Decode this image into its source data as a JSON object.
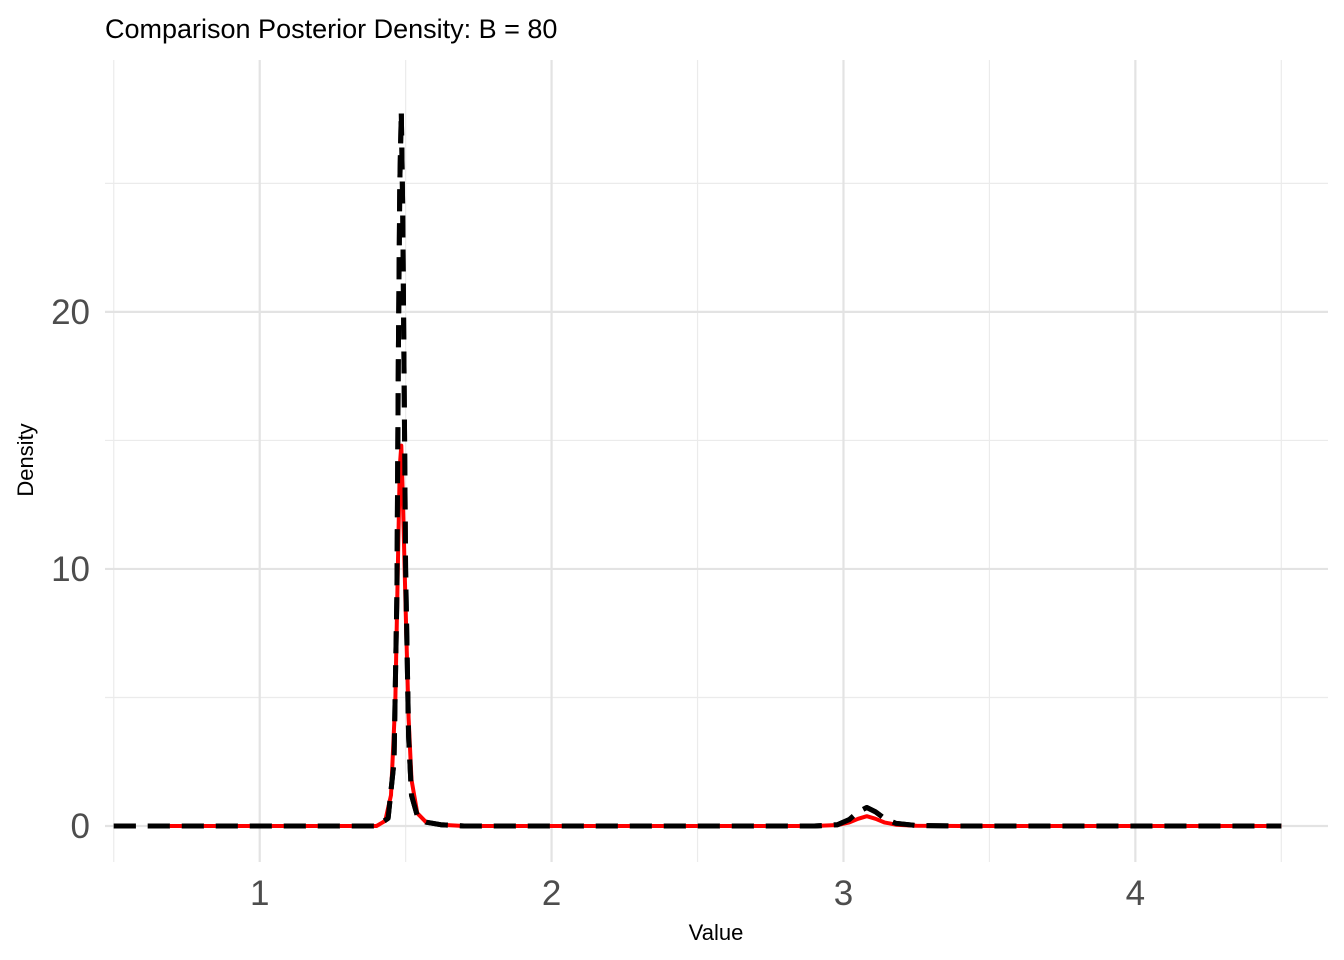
{
  "chart_data": {
    "type": "line",
    "title": "Comparison Posterior Density: B = 80",
    "xlabel": "Value",
    "ylabel": "Density",
    "xlim": [
      0.47,
      4.66
    ],
    "ylim": [
      -1.4,
      29.8
    ],
    "x_ticks": [
      1,
      2,
      3,
      4
    ],
    "x_tick_labels": [
      "1",
      "2",
      "3",
      "4"
    ],
    "y_ticks": [
      0,
      10,
      20
    ],
    "y_tick_labels": [
      "0",
      "10",
      "20"
    ],
    "x_minor_ticks": [
      0.5,
      1.5,
      2.5,
      3.5,
      4.5
    ],
    "y_minor_ticks": [
      5,
      15,
      25
    ],
    "grid": true,
    "legend": "none",
    "series": [
      {
        "color": "#000000",
        "style": "dashed",
        "x": [
          0.5,
          1.2,
          1.4,
          1.44,
          1.46,
          1.47,
          1.475,
          1.48,
          1.485,
          1.49,
          1.495,
          1.5,
          1.51,
          1.52,
          1.54,
          1.57,
          1.62,
          1.7,
          2.0,
          2.9,
          2.98,
          3.02,
          3.05,
          3.08,
          3.11,
          3.14,
          3.18,
          3.25,
          3.4,
          4.5
        ],
        "y": [
          0,
          0,
          0,
          0.3,
          2.5,
          9.0,
          18.0,
          25.0,
          27.8,
          24.0,
          17.0,
          10.0,
          3.5,
          1.2,
          0.4,
          0.15,
          0.05,
          0,
          0,
          0,
          0.05,
          0.25,
          0.55,
          0.72,
          0.55,
          0.3,
          0.1,
          0.02,
          0,
          0
        ]
      },
      {
        "color": "#ff0000",
        "style": "solid",
        "x": [
          0.66,
          1.2,
          1.4,
          1.43,
          1.45,
          1.465,
          1.475,
          1.48,
          1.485,
          1.49,
          1.5,
          1.51,
          1.52,
          1.54,
          1.57,
          1.62,
          1.7,
          2.0,
          2.9,
          2.98,
          3.02,
          3.05,
          3.08,
          3.11,
          3.14,
          3.18,
          3.25,
          3.4,
          4.5
        ],
        "y": [
          0,
          0,
          0,
          0.2,
          1.2,
          5.0,
          11.0,
          14.0,
          14.8,
          13.0,
          8.5,
          4.2,
          1.8,
          0.5,
          0.15,
          0.05,
          0,
          0,
          0,
          0.04,
          0.14,
          0.28,
          0.38,
          0.28,
          0.14,
          0.05,
          0.01,
          0,
          0
        ]
      }
    ]
  }
}
